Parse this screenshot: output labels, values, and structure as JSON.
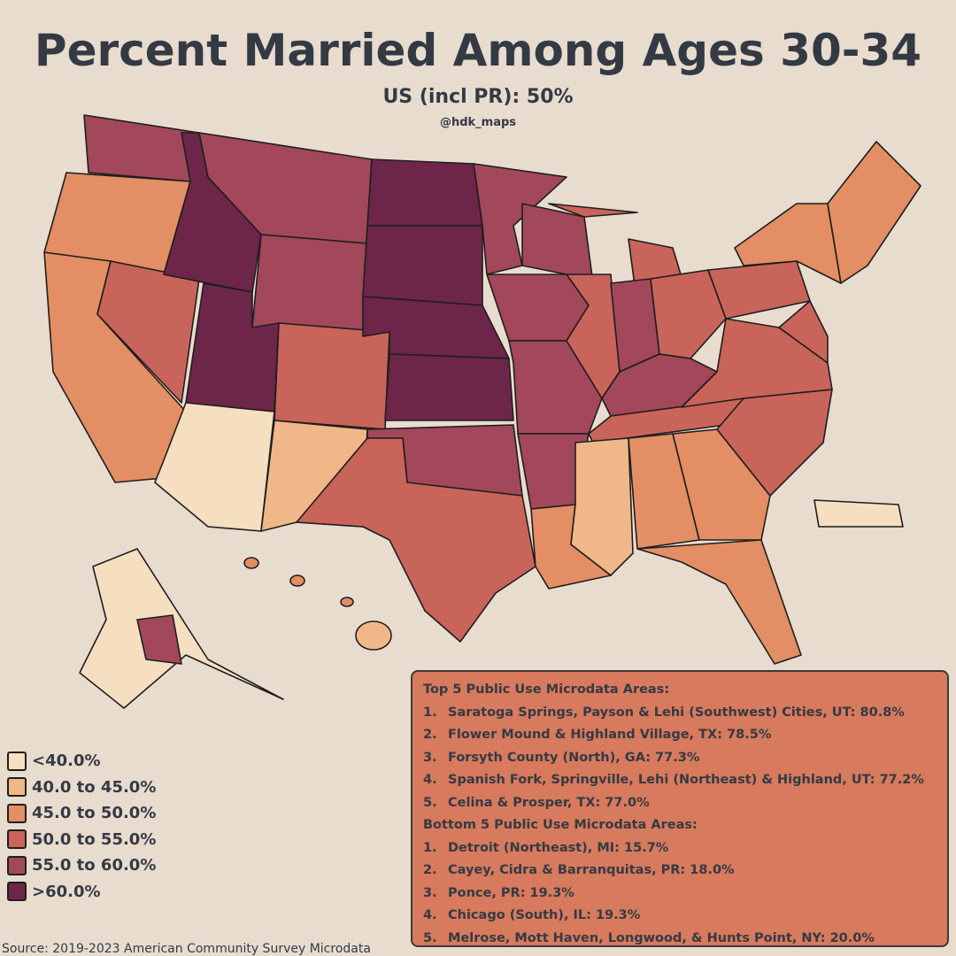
{
  "title": "Percent Married Among Ages 30-34",
  "subtitle": "US (incl PR): 50%",
  "credit": "@hdk_maps",
  "legend": [
    {
      "label": "<40.0%",
      "color": "#f6dfc0"
    },
    {
      "label": "40.0 to 45.0%",
      "color": "#f0b888"
    },
    {
      "label": "45.0 to 50.0%",
      "color": "#e38e64"
    },
    {
      "label": "50.0 to 55.0%",
      "color": "#c9645a"
    },
    {
      "label": "55.0 to 60.0%",
      "color": "#a2485a"
    },
    {
      "label": ">60.0%",
      "color": "#6d2649"
    }
  ],
  "top": {
    "heading": "Top 5 Public Use Microdata Areas:",
    "items": [
      {
        "rank": "1.",
        "text": "Saratoga Springs, Payson & Lehi (Southwest) Cities, UT: 80.8%"
      },
      {
        "rank": "2.",
        "text": "Flower Mound & Highland Village, TX: 78.5%"
      },
      {
        "rank": "3.",
        "text": "Forsyth County (North), GA: 77.3%"
      },
      {
        "rank": "4.",
        "text": "Spanish Fork, Springville, Lehi (Northeast) & Highland, UT: 77.2%"
      },
      {
        "rank": "5.",
        "text": "Celina & Prosper, TX: 77.0%"
      }
    ]
  },
  "bottom": {
    "heading": "Bottom 5 Public Use Microdata Areas:",
    "items": [
      {
        "rank": "1.",
        "text": "Detroit (Northeast), MI: 15.7%"
      },
      {
        "rank": "2.",
        "text": "Cayey, Cidra & Barranquitas, PR: 18.0%"
      },
      {
        "rank": "3.",
        "text": "Ponce, PR: 19.3%"
      },
      {
        "rank": "4.",
        "text": "Chicago (South), IL: 19.3%"
      },
      {
        "rank": "5.",
        "text": "Melrose, Mott Haven, Longwood, & Hunts Point, NY: 20.0%"
      }
    ]
  },
  "source": "Source: 2019-2023 American Community Survey Microdata"
}
